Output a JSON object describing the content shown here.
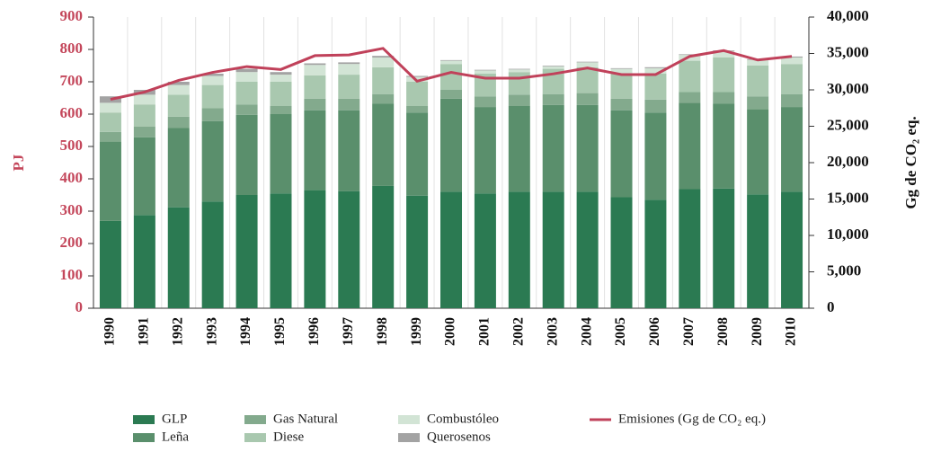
{
  "chart_data": {
    "type": "bar",
    "stacked": true,
    "categories": [
      "1990",
      "1991",
      "1992",
      "1993",
      "1994",
      "1995",
      "1996",
      "1997",
      "1998",
      "1999",
      "2000",
      "2001",
      "2002",
      "2003",
      "2004",
      "2005",
      "2006",
      "2007",
      "2008",
      "2009",
      "2010"
    ],
    "ylabel": "PJ",
    "y2label": "Gg de CO₂ eq.",
    "ylim": [
      0,
      900
    ],
    "yticks": [
      0,
      100,
      200,
      300,
      400,
      500,
      600,
      700,
      800,
      900
    ],
    "y2lim": [
      0,
      40000
    ],
    "y2ticks": [
      0,
      {
        "value": 5000,
        "label": "5,000"
      },
      {
        "value": 10000,
        "label": "10,000"
      },
      {
        "value": 15000,
        "label": "15,000"
      },
      {
        "value": 20000,
        "label": "20,000"
      },
      {
        "value": 25000,
        "label": "25,000"
      },
      {
        "value": 30000,
        "label": "30,000"
      },
      {
        "value": 35000,
        "label": "35,000"
      },
      {
        "value": 40000,
        "label": "40,000"
      }
    ],
    "grid": false,
    "legend": "bottom",
    "series": [
      {
        "name": "GLP",
        "color": "#2b7a52",
        "values": [
          270,
          288,
          312,
          330,
          350,
          355,
          365,
          362,
          378,
          348,
          360,
          355,
          360,
          360,
          360,
          343,
          335,
          368,
          370,
          352,
          360
        ]
      },
      {
        "name": "Leña",
        "color": "#5a8f6c",
        "values": [
          245,
          240,
          245,
          248,
          248,
          245,
          247,
          250,
          254,
          257,
          288,
          267,
          265,
          268,
          268,
          269,
          270,
          267,
          262,
          263,
          262
        ]
      },
      {
        "name": "Gas Natural",
        "color": "#83aa8d",
        "values": [
          30,
          34,
          35,
          40,
          32,
          25,
          36,
          36,
          30,
          20,
          27,
          33,
          35,
          34,
          37,
          36,
          40,
          33,
          36,
          40,
          40
        ]
      },
      {
        "name": "Diese",
        "color": "#a9c8af",
        "values": [
          60,
          68,
          68,
          72,
          70,
          75,
          72,
          74,
          83,
          75,
          80,
          70,
          70,
          78,
          80,
          77,
          80,
          97,
          107,
          95,
          93
        ]
      },
      {
        "name": "Combustóleo",
        "color": "#d2e4d5",
        "values": [
          30,
          30,
          30,
          28,
          30,
          22,
          32,
          33,
          30,
          15,
          10,
          10,
          8,
          8,
          15,
          15,
          17,
          18,
          20,
          18,
          20
        ]
      },
      {
        "name": "Querosenos",
        "color": "#a3a3a3",
        "values": [
          20,
          15,
          10,
          7,
          10,
          8,
          5,
          5,
          5,
          3,
          2,
          2,
          2,
          2,
          2,
          2,
          3,
          2,
          2,
          2,
          3
        ]
      },
      {
        "name": "Emisiones (Gg de CO₂ eq.)",
        "type": "line",
        "axis": "y2",
        "color": "#c0415a",
        "values": [
          28700,
          29700,
          31300,
          32400,
          33200,
          32800,
          34700,
          34800,
          35700,
          31200,
          32400,
          31600,
          31600,
          32200,
          33000,
          32100,
          32100,
          34600,
          35400,
          34100,
          34600
        ]
      }
    ]
  }
}
